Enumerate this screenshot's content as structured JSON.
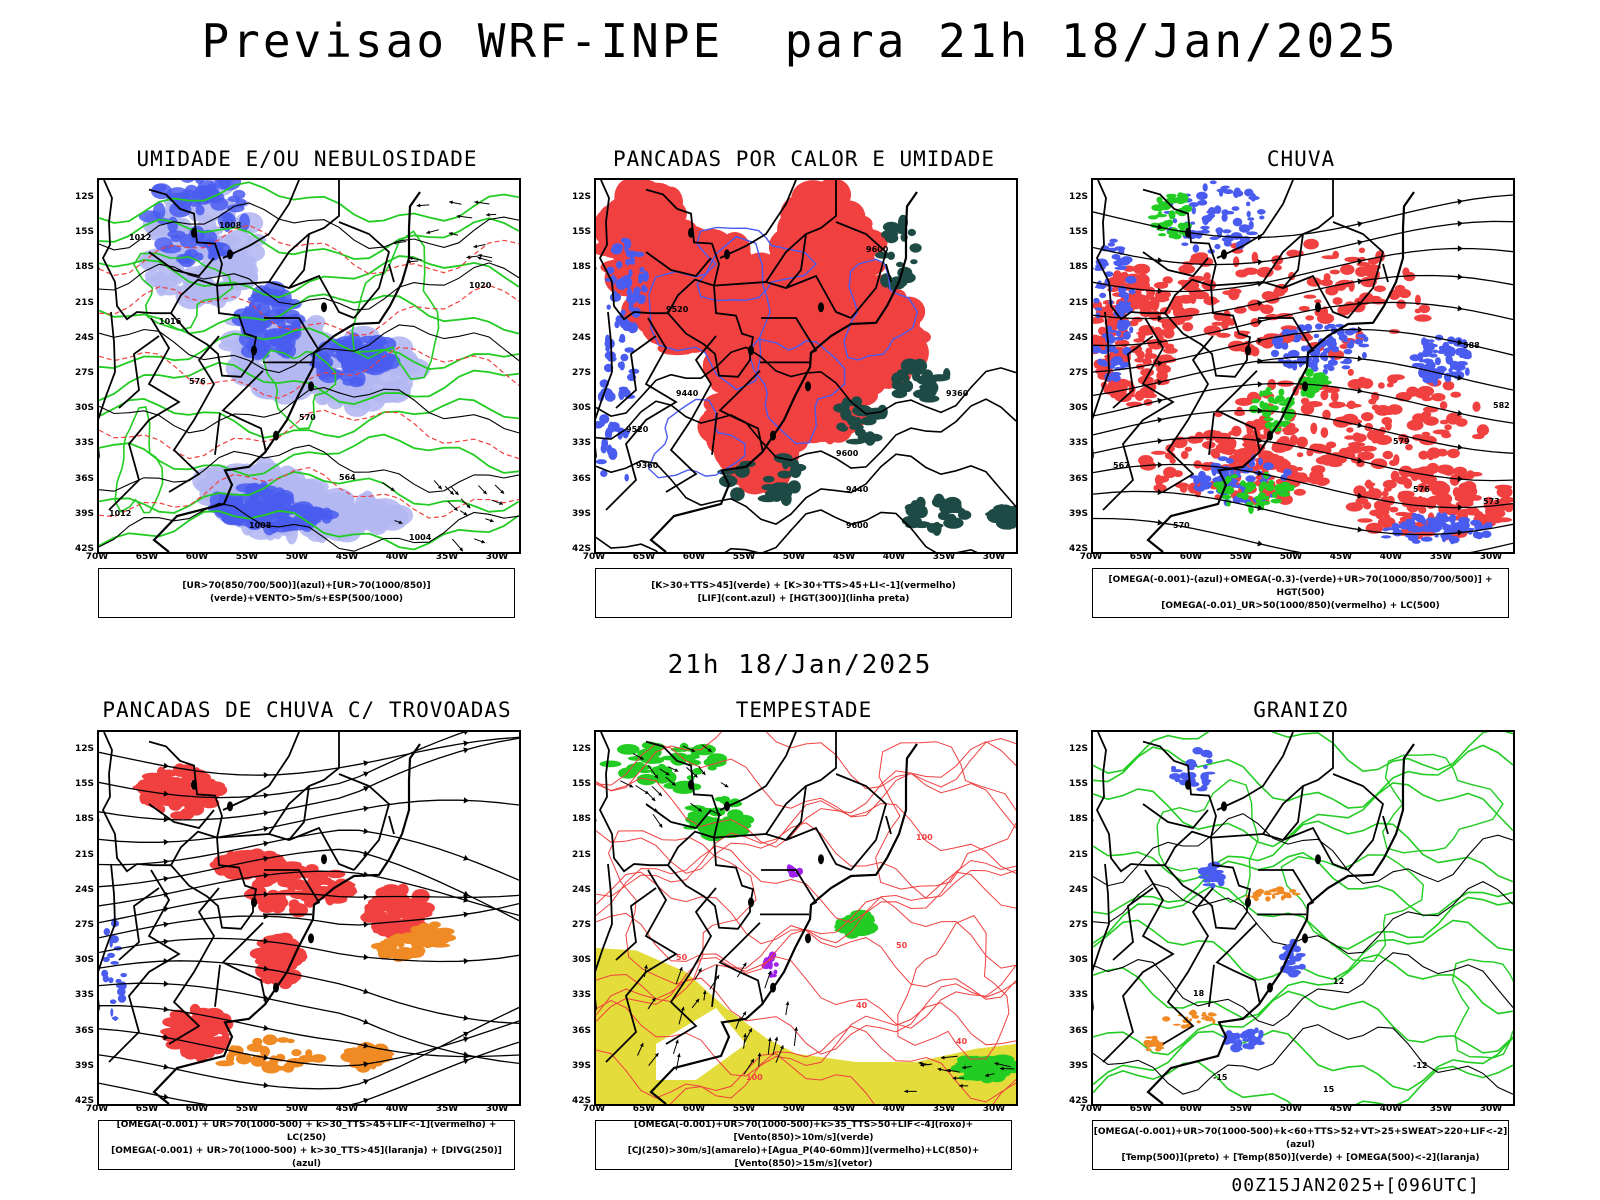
{
  "title": "Previsao WRF-INPE  para 21h 18/Jan/2025",
  "mid_time": "21h 18/Jan/2025",
  "footer": "00Z15JAN2025+[096UTC]",
  "lat_labels": [
    "12S",
    "15S",
    "18S",
    "21S",
    "24S",
    "27S",
    "30S",
    "33S",
    "36S",
    "39S",
    "42S"
  ],
  "lon_labels": [
    "70W",
    "65W",
    "60W",
    "55W",
    "50W",
    "45W",
    "40W",
    "35W",
    "30W"
  ],
  "panels": [
    {
      "title": "UMIDADE E/OU NEBULOSIDADE",
      "legend": [
        "[UR>70(850/700/500)](azul)+[UR>70(1000/850)](verde)+VENTO>5m/s+ESP(500/1000)"
      ],
      "contour_labels": [
        "1008",
        "1012",
        "1016",
        "576",
        "570",
        "564",
        "1004",
        "1020"
      ]
    },
    {
      "title": "PANCADAS POR CALOR E UMIDADE",
      "legend": [
        "[K>30+TTS>45](verde) + [K>30+TTS>45+LI<-1](vermelho)",
        "[LIF](cont.azul) + [HGT(300)](linha preta)"
      ],
      "contour_labels": [
        "9600",
        "9520",
        "9440",
        "9360"
      ]
    },
    {
      "title": "CHUVA",
      "legend": [
        "[OMEGA(-0.001)-(azul)+OMEGA(-0.3)-(verde)+UR>70(1000/850/700/500)] + HGT(500)",
        "[OMEGA(-0.01)_UR>50(1000/850)(vermelho) + LC(500)"
      ],
      "contour_labels": [
        "588",
        "582",
        "579",
        "576",
        "573",
        "570",
        "567"
      ]
    },
    {
      "title": "PANCADAS DE CHUVA C/ TROVOADAS",
      "legend": [
        "[OMEGA(-0.001) + UR>70(1000-500) + k>30_TTS>45+LIF<-1](vermelho) + LC(250)",
        "[OMEGA(-0.001) + UR>70(1000-500) + k>30_TTS>45](laranja) + [DIVG(250)](azul)"
      ],
      "contour_labels": []
    },
    {
      "title": "TEMPESTADE",
      "legend": [
        "[OMEGA(-0.001)+UR>70(1000-500)+k>35_TTS>50+LIF<-4](roxo)+[Vento(850)>10m/s](verde)",
        "[CJ(250)>30m/s](amarelo)+[Agua_P(40-60mm)](vermelho)+LC(850)+[Vento(850)>15m/s](vetor)"
      ],
      "contour_labels": [
        "40",
        "50",
        "100"
      ]
    },
    {
      "title": "GRANIZO",
      "legend": [
        "[OMEGA(-0.001)+UR>70(1000-500)+k<60+TTS>52+VT>25+SWEAT>220+LIF<-2](azul)",
        "[Temp(500)](preto) + [Temp(850)](verde) + [OMEGA(500)<-2](laranja)"
      ],
      "contour_labels": [
        "-12",
        "-15",
        "12",
        "15",
        "18"
      ]
    }
  ],
  "colors": {
    "blue": "#4a5cf0",
    "lightblue": "#b4b8f2",
    "green": "#22cc22",
    "red": "#f04040",
    "darkteal": "#1d4a44",
    "orange": "#f08a24",
    "yellow": "#e4dc3a",
    "purple": "#a020f0"
  }
}
